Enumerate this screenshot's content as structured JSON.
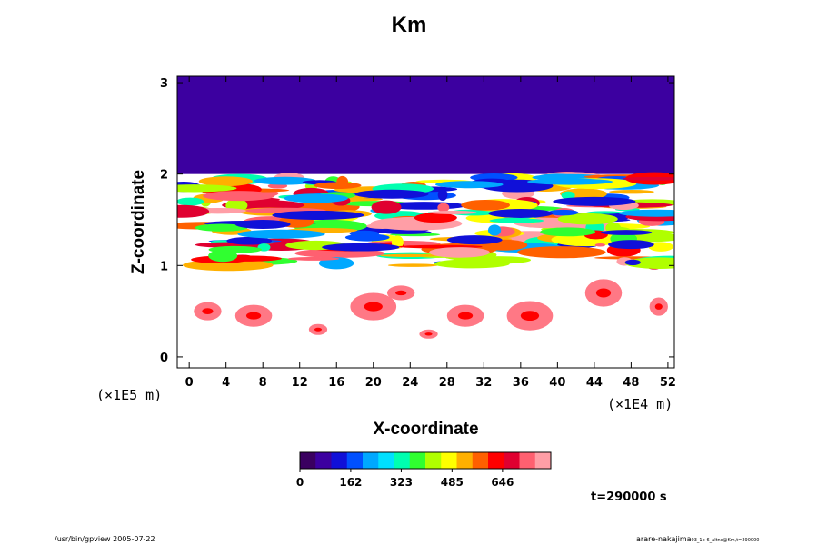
{
  "chart_data": {
    "type": "heatmap",
    "title": "Km",
    "xlabel": "X-coordinate",
    "ylabel": "Z-coordinate",
    "x_unit": "(×1E4 m)",
    "y_unit": "(×1E5 m)",
    "x_ticks": [
      0,
      4,
      8,
      12,
      16,
      20,
      24,
      28,
      32,
      36,
      40,
      44,
      48,
      52
    ],
    "y_ticks": [
      0,
      1,
      2,
      3
    ],
    "xlim": [
      -1.3,
      52.7
    ],
    "ylim": [
      -0.12,
      3.07
    ],
    "colorbar": {
      "ticks": [
        0,
        162,
        323,
        485,
        646
      ],
      "range": [
        0,
        800
      ],
      "palette": [
        "#3a0060",
        "#3c00a0",
        "#1010d8",
        "#0050ff",
        "#00a8ff",
        "#00e0ff",
        "#00ffb0",
        "#30ff30",
        "#b0ff00",
        "#ffff00",
        "#ffb000",
        "#ff6000",
        "#ff0000",
        "#e00030",
        "#ff6070",
        "#ff9ea6"
      ]
    },
    "regions": [
      {
        "name": "upper stable layer",
        "z_range": [
          2.0,
          3.07
        ],
        "value": 0
      },
      {
        "name": "turbulent layer",
        "z_range": [
          0.95,
          2.0
        ],
        "value_range": [
          0,
          800
        ]
      },
      {
        "name": "lower layer",
        "z_range": [
          -0.12,
          0.95
        ],
        "value_range": [
          450,
          760
        ]
      }
    ],
    "grid": false
  },
  "time_label": "t=290000 s",
  "footer": {
    "left": "/usr/bin/gpview 2005-07-22",
    "right_main": "arare-nakajima",
    "right_sub": "03_1e-6_altnc@Km,t=290000"
  }
}
